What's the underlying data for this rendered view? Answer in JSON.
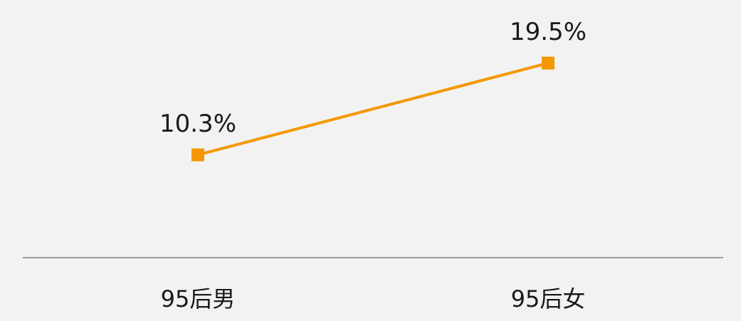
{
  "chart_data": {
    "type": "line",
    "categories": [
      "95后男",
      "95后女"
    ],
    "values": [
      10.3,
      19.5
    ],
    "value_labels": [
      "10.3%",
      "19.5%"
    ],
    "color": "#f39800",
    "ylim": [
      0,
      25
    ]
  }
}
